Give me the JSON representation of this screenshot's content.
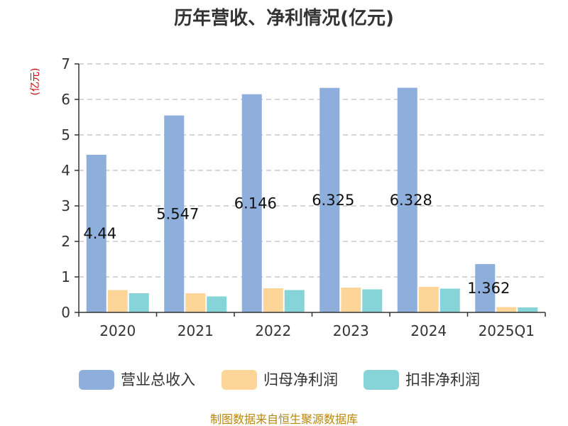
{
  "chart_data": {
    "type": "bar",
    "title": "历年营收、净利情况(亿元)",
    "ylabel": "(亿元)",
    "categories": [
      "2020",
      "2021",
      "2022",
      "2023",
      "2024",
      "2025Q1"
    ],
    "ylim": [
      0,
      7
    ],
    "yticks": [
      0,
      1,
      2,
      3,
      4,
      5,
      6,
      7
    ],
    "grid": true,
    "legend_position": "bottom",
    "series": [
      {
        "name": "营业总收入",
        "color": "#8eaedb",
        "values": [
          4.44,
          5.547,
          6.146,
          6.325,
          6.328,
          1.362
        ],
        "labels": [
          "4.44",
          "5.547",
          "6.146",
          "6.325",
          "6.328",
          "1.362"
        ]
      },
      {
        "name": "归母净利润",
        "color": "#fdd598",
        "values": [
          0.63,
          0.54,
          0.68,
          0.7,
          0.72,
          0.15
        ]
      },
      {
        "name": "扣非净利润",
        "color": "#86d4d7",
        "values": [
          0.54,
          0.45,
          0.63,
          0.65,
          0.67,
          0.14
        ]
      }
    ]
  },
  "footer": {
    "source": "制图数据来自恒生聚源数据库"
  }
}
